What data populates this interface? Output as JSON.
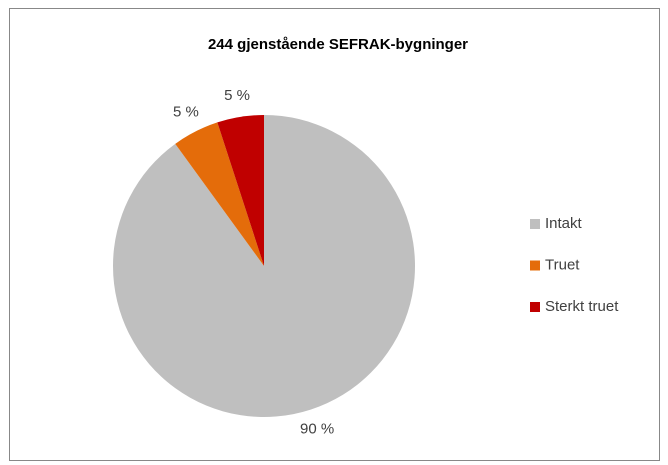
{
  "chart_data": {
    "type": "pie",
    "title": "244 gjenstående SEFRAK-bygninger",
    "categories": [
      "Intakt",
      "Truet",
      "Sterkt truet"
    ],
    "values": [
      90,
      5,
      5
    ],
    "value_labels": [
      "90 %",
      "5 %",
      "5 %"
    ],
    "colors": [
      "#bfbfbf",
      "#e46c0a",
      "#c00000"
    ],
    "legend": "right"
  }
}
